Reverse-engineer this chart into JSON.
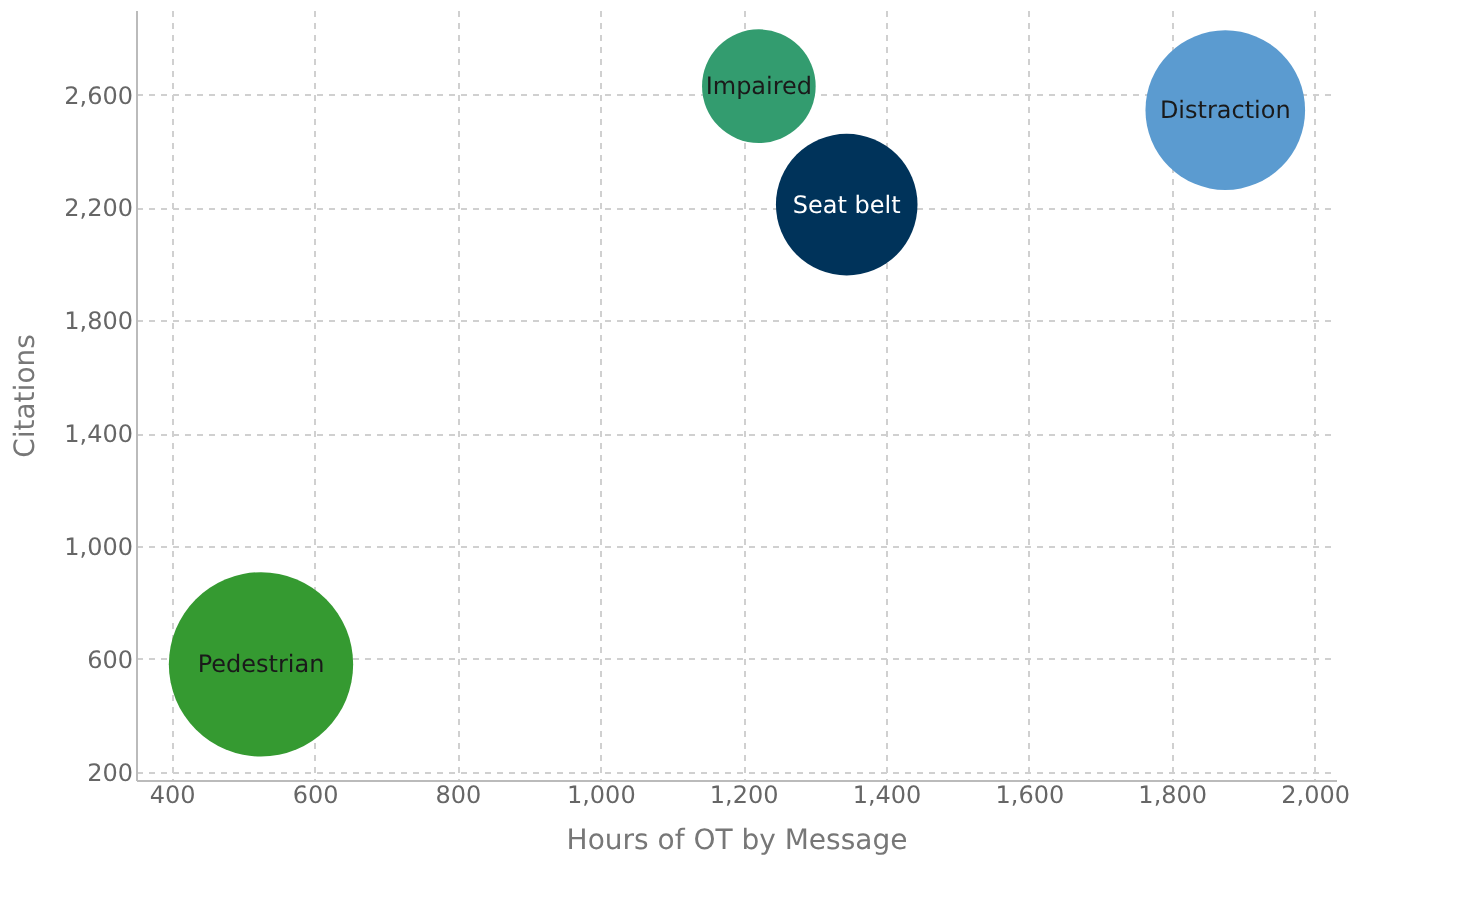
{
  "chart_data": {
    "type": "bubble",
    "xlabel": "Hours of OT by Message",
    "ylabel": "Citations",
    "series": [
      {
        "name": "Impaired",
        "color": "#339c6f",
        "x": [
          1222
        ],
        "values": [
          2630
        ],
        "sizes": [
          0.38
        ]
      },
      {
        "name": "Seat belt",
        "color": "#00335a",
        "x": [
          1345
        ],
        "values": [
          2210
        ],
        "sizes": [
          0.59
        ]
      },
      {
        "name": "Distraction",
        "color": "#5b9bd0",
        "x": [
          1875
        ],
        "values": [
          2545
        ],
        "sizes": [
          0.75
        ]
      },
      {
        "name": "Pedestrian",
        "color": "#359a31",
        "x": [
          525
        ],
        "values": [
          580
        ],
        "sizes": [
          1
        ]
      }
    ],
    "xlim": [
      350,
      2030
    ],
    "xticks": [
      {
        "value": 400,
        "label": "400"
      },
      {
        "value": 600,
        "label": "600"
      },
      {
        "value": 800,
        "label": "800"
      },
      {
        "value": 1000,
        "label": "1,000"
      },
      {
        "value": 1200,
        "label": "1,200"
      },
      {
        "value": 1400,
        "label": "1,400"
      },
      {
        "value": 1600,
        "label": "1,600"
      },
      {
        "value": 1800,
        "label": "1,800"
      },
      {
        "value": 2000,
        "label": "2,000"
      }
    ],
    "ylim": [
      170,
      2900
    ],
    "yticks": [
      {
        "value": 200,
        "label": "200"
      },
      {
        "value": 600,
        "label": "600"
      },
      {
        "value": 1000,
        "label": "1,000"
      },
      {
        "value": 1400,
        "label": "1,400"
      },
      {
        "value": 1800,
        "label": "1,800"
      },
      {
        "value": 2200,
        "label": "2,200"
      },
      {
        "value": 2600,
        "label": "2,600"
      }
    ],
    "grid": true,
    "legend": false
  }
}
